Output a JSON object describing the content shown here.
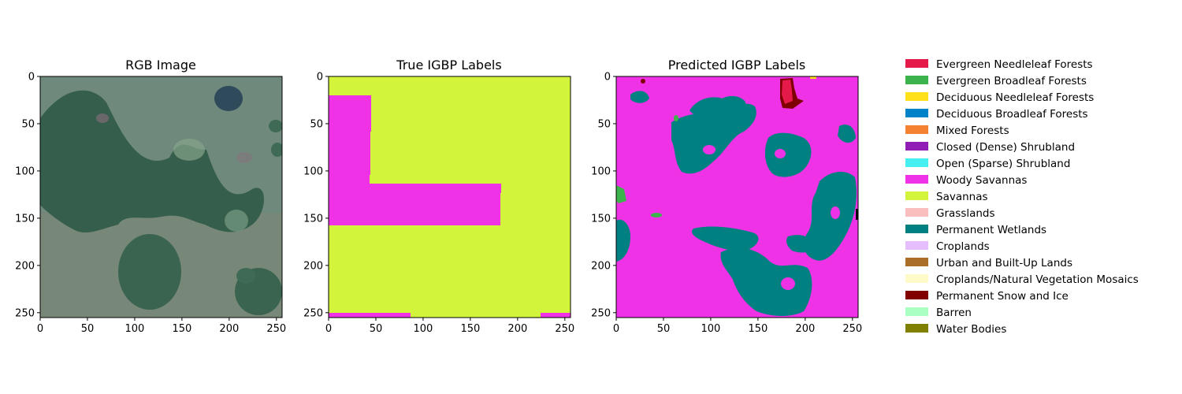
{
  "panels": [
    {
      "title": "RGB Image",
      "kind": "image"
    },
    {
      "title": "True IGBP Labels",
      "kind": "true_labels"
    },
    {
      "title": "Predicted IGBP Labels",
      "kind": "predicted_labels"
    }
  ],
  "axes": {
    "x_ticks": [
      "0",
      "50",
      "100",
      "150",
      "200",
      "250"
    ],
    "y_ticks": [
      "0",
      "50",
      "100",
      "150",
      "200",
      "250"
    ]
  },
  "legend": {
    "placement": "right",
    "items": [
      {
        "label": "Evergreen Needleleaf Forests",
        "color": "#e6194b"
      },
      {
        "label": "Evergreen Broadleaf Forests",
        "color": "#3cb44b"
      },
      {
        "label": "Deciduous Needleleaf Forests",
        "color": "#ffe119"
      },
      {
        "label": "Deciduous Broadleaf Forests",
        "color": "#0082c8"
      },
      {
        "label": "Mixed Forests",
        "color": "#f58231"
      },
      {
        "label": "Closed (Dense) Shrubland",
        "color": "#911eb4"
      },
      {
        "label": "Open (Sparse) Shrubland",
        "color": "#46f0f0"
      },
      {
        "label": "Woody Savannas",
        "color": "#f032e6"
      },
      {
        "label": "Savannas",
        "color": "#d2f53c"
      },
      {
        "label": "Grasslands",
        "color": "#fabebe"
      },
      {
        "label": "Permanent Wetlands",
        "color": "#008080"
      },
      {
        "label": "Croplands",
        "color": "#e6beff"
      },
      {
        "label": "Urban and Built-Up Lands",
        "color": "#aa6e28"
      },
      {
        "label": "Croplands/Natural Vegetation Mosaics",
        "color": "#fffac8"
      },
      {
        "label": "Permanent Snow and Ice",
        "color": "#800000"
      },
      {
        "label": "Barren",
        "color": "#aaffc3"
      },
      {
        "label": "Water Bodies",
        "color": "#808000"
      }
    ]
  },
  "chart_data": [
    {
      "type": "heatmap",
      "title": "RGB Image",
      "xlim": [
        0,
        256
      ],
      "ylim": [
        256,
        0
      ],
      "content": "satellite RGB image (photographic)"
    },
    {
      "type": "heatmap",
      "title": "True IGBP Labels",
      "xlim": [
        0,
        256
      ],
      "ylim": [
        256,
        0
      ],
      "background_class": "Savannas",
      "regions": [
        {
          "class": "Woody Savannas",
          "x": [
            0,
            45
          ],
          "y": [
            20,
            113
          ]
        },
        {
          "class": "Woody Savannas",
          "x": [
            0,
            182
          ],
          "y": [
            113,
            158
          ]
        },
        {
          "class": "Woody Savannas",
          "x": [
            0,
            87
          ],
          "y": [
            251,
            256
          ]
        },
        {
          "class": "Woody Savannas",
          "x": [
            224,
            256
          ],
          "y": [
            251,
            256
          ]
        }
      ]
    },
    {
      "type": "heatmap",
      "title": "Predicted IGBP Labels",
      "xlim": [
        0,
        256
      ],
      "ylim": [
        256,
        0
      ],
      "background_class": "Woody Savannas",
      "regions": [
        {
          "class": "Permanent Wetlands",
          "x": [
            55,
            115
          ],
          "y": [
            35,
            100
          ]
        },
        {
          "class": "Permanent Wetlands",
          "x": [
            95,
            160
          ],
          "y": [
            25,
            75
          ]
        },
        {
          "class": "Permanent Wetlands",
          "x": [
            160,
            220
          ],
          "y": [
            60,
            105
          ]
        },
        {
          "class": "Permanent Wetlands",
          "x": [
            200,
            256
          ],
          "y": [
            100,
            200
          ]
        },
        {
          "class": "Permanent Wetlands",
          "x": [
            115,
            175
          ],
          "y": [
            158,
            200
          ]
        },
        {
          "class": "Permanent Wetlands",
          "x": [
            130,
            205
          ],
          "y": [
            180,
            256
          ]
        },
        {
          "class": "Permanent Wetlands",
          "x": [
            0,
            20
          ],
          "y": [
            150,
            200
          ]
        },
        {
          "class": "Evergreen Needleleaf Forests",
          "x": [
            172,
            188
          ],
          "y": [
            0,
            32
          ]
        },
        {
          "class": "Permanent Snow and Ice",
          "x": [
            170,
            195
          ],
          "y": [
            0,
            33
          ]
        },
        {
          "class": "Evergreen Broadleaf Forests",
          "x": [
            0,
            10
          ],
          "y": [
            115,
            130
          ]
        },
        {
          "class": "Evergreen Broadleaf Forests",
          "x": [
            36,
            48
          ],
          "y": [
            145,
            150
          ]
        }
      ]
    }
  ]
}
